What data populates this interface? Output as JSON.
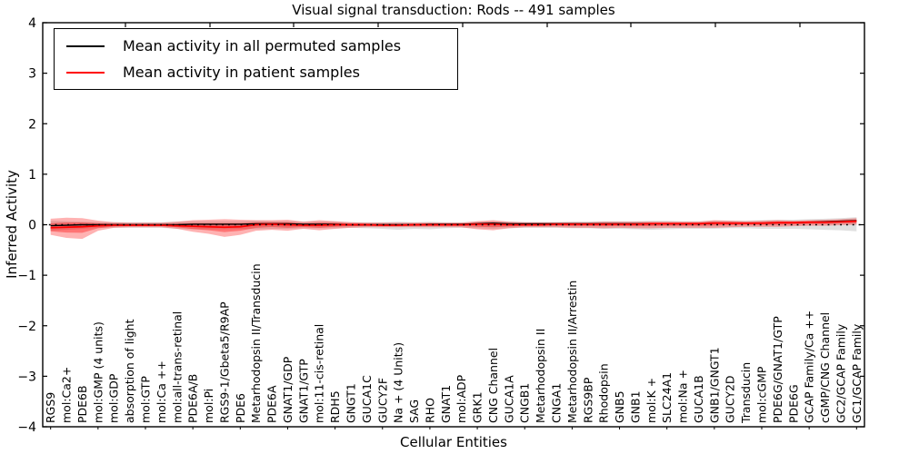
{
  "title": "Visual signal transduction: Rods -- 491 samples",
  "legend": [
    {
      "label": "Mean activity in all permuted samples",
      "color": "#000000"
    },
    {
      "label": "Mean activity in patient samples",
      "color": "#ff0000"
    }
  ],
  "colors": {
    "permuted_line": "#000000",
    "permuted_band": "#999999",
    "patient_line": "#ff0000",
    "patient_band": "#ff0000",
    "axis": "#000000",
    "background": "#ffffff"
  },
  "chart_data": {
    "type": "line",
    "title": "Visual signal transduction: Rods -- 491 samples",
    "xlabel": "Cellular Entities",
    "ylabel": "Inferred Activity",
    "ylim": [
      -4,
      4
    ],
    "yticks": [
      4,
      3,
      2,
      1,
      0,
      -1,
      -2,
      -3,
      -4
    ],
    "grid": false,
    "legend_position": "upper left",
    "zero_line": "dotted black at y=0",
    "categories": [
      "RGS9",
      "mol:Ca2+",
      "PDE6B",
      "mol:GMP (4 units)",
      "mol:GDP",
      "absorption of light",
      "mol:GTP",
      "mol:Ca ++",
      "mol:all-trans-retinal",
      "PDE6A/B",
      "mol:Pi",
      "RGS9-1/Gbeta5/R9AP",
      "PDE6",
      "Metarhodopsin II/Transducin",
      "PDE6A",
      "GNAT1/GDP",
      "GNAT1/GTP",
      "mol:11-cis-retinal",
      "RDH5",
      "GNGT1",
      "GUCA1C",
      "GUCY2F",
      "Na + (4 Units)",
      "SAG",
      "RHO",
      "GNAT1",
      "mol:ADP",
      "GRK1",
      "CNG Channel",
      "GUCA1A",
      "CNGB1",
      "Metarhodopsin II",
      "CNGA1",
      "Metarhodopsin II/Arrestin",
      "RGS9BP",
      "Rhodopsin",
      "GNB5",
      "GNB1",
      "mol:K +",
      "SLC24A1",
      "mol:Na +",
      "GUCA1B",
      "GNB1/GNGT1",
      "GUCY2D",
      "Transducin",
      "mol:cGMP",
      "PDE6G/GNAT1/GTP",
      "PDE6G",
      "GCAP Family/Ca ++",
      "cGMP/CNG Channel",
      "GC2/GCAP Family",
      "GC1/GCAP Family"
    ],
    "series": [
      {
        "name": "Mean activity in all permuted samples",
        "color": "#000000",
        "line_width": 1.4,
        "band_color": "#999999",
        "band_alpha": 0.3,
        "values": [
          -0.02,
          -0.01,
          0,
          0,
          0,
          0,
          0,
          0,
          0,
          0.01,
          0.01,
          0.01,
          0.01,
          0.02,
          0.02,
          0.02,
          0.01,
          0.01,
          0.01,
          0,
          0,
          0,
          0,
          0,
          0.01,
          0.01,
          0.01,
          0.02,
          0.03,
          0.02,
          0.02,
          0.02,
          0.02,
          0.02,
          0.02,
          0.02,
          0.02,
          0.02,
          0.02,
          0.02,
          0.02,
          0.02,
          0.03,
          0.03,
          0.03,
          0.03,
          0.04,
          0.04,
          0.05,
          0.06,
          0.07,
          0.08
        ],
        "band_upper": [
          0.08,
          0.07,
          0.06,
          0.05,
          0.05,
          0.05,
          0.05,
          0.05,
          0.06,
          0.07,
          0.07,
          0.07,
          0.07,
          0.08,
          0.07,
          0.07,
          0.06,
          0.06,
          0.06,
          0.05,
          0.05,
          0.05,
          0.06,
          0.05,
          0.06,
          0.05,
          0.05,
          0.06,
          0.07,
          0.06,
          0.05,
          0.05,
          0.05,
          0.06,
          0.06,
          0.07,
          0.07,
          0.07,
          0.08,
          0.08,
          0.07,
          0.07,
          0.08,
          0.08,
          0.08,
          0.09,
          0.1,
          0.1,
          0.11,
          0.12,
          0.13,
          0.15
        ],
        "band_lower": [
          -0.12,
          -0.1,
          -0.08,
          -0.06,
          -0.06,
          -0.06,
          -0.06,
          -0.06,
          -0.08,
          -0.09,
          -0.09,
          -0.09,
          -0.08,
          -0.09,
          -0.08,
          -0.08,
          -0.07,
          -0.07,
          -0.07,
          -0.06,
          -0.07,
          -0.08,
          -0.1,
          -0.08,
          -0.09,
          -0.07,
          -0.06,
          -0.07,
          -0.08,
          -0.07,
          -0.06,
          -0.06,
          -0.06,
          -0.07,
          -0.07,
          -0.08,
          -0.08,
          -0.09,
          -0.1,
          -0.09,
          -0.08,
          -0.08,
          -0.08,
          -0.07,
          -0.07,
          -0.08,
          -0.08,
          -0.08,
          -0.09,
          -0.1,
          -0.11,
          -0.13
        ]
      },
      {
        "name": "Mean activity in patient samples",
        "color": "#ff0000",
        "line_width": 1.7,
        "band_color": "#ff0000",
        "band_alpha": 0.3,
        "values": [
          -0.06,
          -0.05,
          -0.04,
          -0.02,
          -0.01,
          -0.01,
          -0.01,
          -0.01,
          -0.02,
          -0.03,
          -0.04,
          -0.05,
          -0.04,
          0,
          0.01,
          0,
          -0.01,
          -0.01,
          0,
          0,
          0,
          -0.01,
          -0.01,
          0,
          0,
          0,
          0,
          0.01,
          0.01,
          0,
          0,
          0,
          0.01,
          0.01,
          0.01,
          0.01,
          0.01,
          0.01,
          0.02,
          0.02,
          0.02,
          0.02,
          0.03,
          0.03,
          0.03,
          0.03,
          0.04,
          0.04,
          0.05,
          0.05,
          0.06,
          0.07
        ],
        "band_upper": [
          0.12,
          0.14,
          0.13,
          0.08,
          0.05,
          0.04,
          0.04,
          0.04,
          0.06,
          0.09,
          0.1,
          0.11,
          0.1,
          0.09,
          0.09,
          0.1,
          0.06,
          0.09,
          0.07,
          0.05,
          0.04,
          0.04,
          0.04,
          0.04,
          0.04,
          0.04,
          0.04,
          0.07,
          0.09,
          0.06,
          0.05,
          0.05,
          0.05,
          0.05,
          0.05,
          0.06,
          0.06,
          0.06,
          0.06,
          0.06,
          0.06,
          0.06,
          0.09,
          0.08,
          0.07,
          0.08,
          0.09,
          0.08,
          0.09,
          0.1,
          0.11,
          0.13
        ],
        "band_lower": [
          -0.2,
          -0.26,
          -0.28,
          -0.12,
          -0.06,
          -0.05,
          -0.05,
          -0.05,
          -0.08,
          -0.14,
          -0.18,
          -0.24,
          -0.2,
          -0.12,
          -0.1,
          -0.12,
          -0.08,
          -0.11,
          -0.08,
          -0.06,
          -0.05,
          -0.05,
          -0.05,
          -0.05,
          -0.05,
          -0.05,
          -0.05,
          -0.09,
          -0.11,
          -0.07,
          -0.05,
          -0.05,
          -0.05,
          -0.06,
          -0.06,
          -0.07,
          -0.06,
          -0.07,
          -0.07,
          -0.06,
          -0.06,
          -0.06,
          -0.06,
          -0.05,
          -0.04,
          -0.04,
          -0.04,
          -0.03,
          -0.02,
          -0.02,
          -0.01,
          0
        ]
      }
    ]
  }
}
